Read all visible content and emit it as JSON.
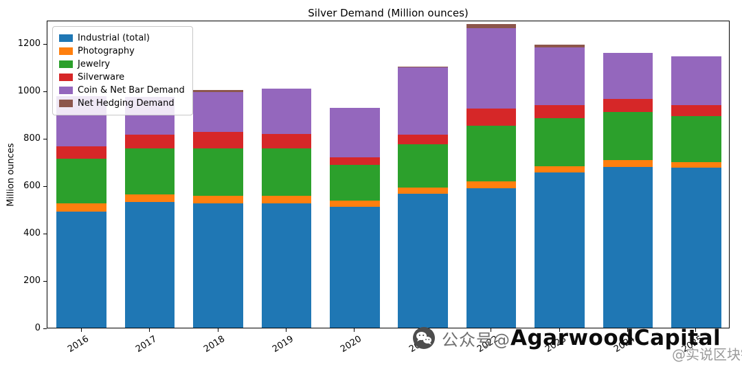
{
  "title": "Silver Demand (Million ounces)",
  "ylabel": "Million ounces",
  "watermark": {
    "prefix": "公众号@",
    "brand": "AgarwoodCapital",
    "right": "@实说区块链"
  },
  "chart_data": {
    "type": "bar",
    "stacked": true,
    "title": "Silver Demand (Million ounces)",
    "xlabel": "",
    "ylabel": "Million ounces",
    "ylim": [
      0,
      1300
    ],
    "yticks": [
      0,
      200,
      400,
      600,
      800,
      1000,
      1200
    ],
    "grid": false,
    "legend_position": "upper left",
    "categories": [
      "2016",
      "2017",
      "2018",
      "2019",
      "2020",
      "2021",
      "2022",
      "2023",
      "2024",
      "2025"
    ],
    "series": [
      {
        "name": "Industrial (total)",
        "color": "#1f77b4",
        "values": [
          490,
          530,
          525,
          525,
          510,
          565,
          590,
          655,
          680,
          675
        ]
      },
      {
        "name": "Photography",
        "color": "#ff7f0e",
        "values": [
          35,
          33,
          33,
          32,
          28,
          28,
          27,
          27,
          27,
          25
        ]
      },
      {
        "name": "Jewelry",
        "color": "#2ca02c",
        "values": [
          190,
          195,
          200,
          200,
          150,
          182,
          235,
          203,
          205,
          195
        ]
      },
      {
        "name": "Silverware",
        "color": "#d62728",
        "values": [
          52,
          57,
          68,
          62,
          32,
          40,
          73,
          55,
          55,
          45
        ]
      },
      {
        "name": "Coin & Net Bar Demand",
        "color": "#9467bd",
        "values": [
          210,
          160,
          170,
          190,
          210,
          285,
          340,
          245,
          195,
          205
        ]
      },
      {
        "name": "Net Hedging Demand",
        "color": "#8c564b",
        "values": [
          0,
          0,
          8,
          0,
          0,
          3,
          18,
          12,
          0,
          0
        ]
      }
    ]
  }
}
